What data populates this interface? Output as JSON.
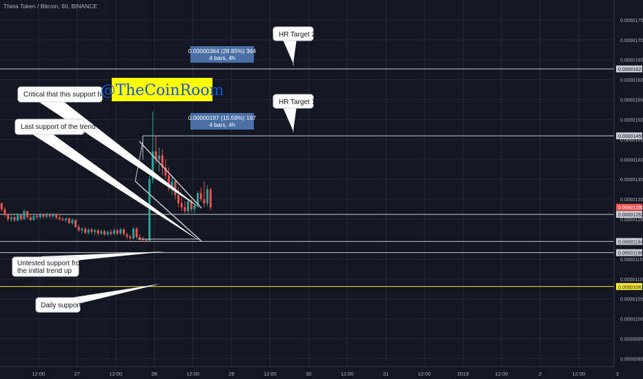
{
  "header": {
    "title": "Theta Token / Bitcoin, 60, BINANCE"
  },
  "watermark": "@TheCoinRoom",
  "colors": {
    "background": "#131722",
    "grid": "#242a37",
    "text": "#b2b5be",
    "up": "#26a69a",
    "down": "#ef5350",
    "measure_box": "#4a6fa5",
    "white_line": "#c8cbd2",
    "yellow": "#ffeb3b",
    "watermark_bg": "#ffff00",
    "watermark_text": "#1a56d6"
  },
  "chart_data": {
    "type": "candlestick",
    "title": "Theta Token / Bitcoin, 60, BINANCE",
    "ylim": [
      8.8e-06,
      1.8e-05
    ],
    "y_ticks": [
      {
        "value": 1.75e-05,
        "label": "0.00001750"
      },
      {
        "value": 1.7e-05,
        "label": "0.00001700"
      },
      {
        "value": 1.65e-05,
        "label": "0.00001650"
      },
      {
        "value": 1.6e-05,
        "label": "0.00001600"
      },
      {
        "value": 1.55e-05,
        "label": "0.00001550"
      },
      {
        "value": 1.5e-05,
        "label": "0.00001500"
      },
      {
        "value": 1.45e-05,
        "label": "0.00001450"
      },
      {
        "value": 1.4e-05,
        "label": "0.00001400"
      },
      {
        "value": 1.35e-05,
        "label": "0.00001350"
      },
      {
        "value": 1.3e-05,
        "label": "0.00001300"
      },
      {
        "value": 1.25e-05,
        "label": "0.00001250"
      },
      {
        "value": 1.15e-05,
        "label": "0.00001150"
      },
      {
        "value": 1.1e-05,
        "label": "0.00001100"
      },
      {
        "value": 1.05e-05,
        "label": "0.00001050"
      },
      {
        "value": 1e-05,
        "label": "0.00001000"
      },
      {
        "value": 9.5e-06,
        "label": "0.00000950"
      },
      {
        "value": 9e-06,
        "label": "0.00000900"
      }
    ],
    "x_ticks": [
      {
        "t": 12,
        "label": "12:00"
      },
      {
        "t": 24,
        "label": "27"
      },
      {
        "t": 36,
        "label": "12:00"
      },
      {
        "t": 48,
        "label": "28"
      },
      {
        "t": 60,
        "label": "12:00"
      },
      {
        "t": 72,
        "label": "29"
      },
      {
        "t": 84,
        "label": "12:00"
      },
      {
        "t": 96,
        "label": "30"
      },
      {
        "t": 108,
        "label": "12:00"
      },
      {
        "t": 120,
        "label": "31"
      },
      {
        "t": 132,
        "label": "12:00"
      },
      {
        "t": 144,
        "label": "2019"
      },
      {
        "t": 156,
        "label": "12:00"
      },
      {
        "t": 168,
        "label": "2"
      },
      {
        "t": 180,
        "label": "12:00"
      },
      {
        "t": 192,
        "label": "3"
      }
    ],
    "candles": [
      [
        1.29e-05,
        1.292e-05,
        1.27e-05,
        1.275e-05
      ],
      [
        1.275e-05,
        1.28e-05,
        1.255e-05,
        1.26e-05
      ],
      [
        1.26e-05,
        1.265e-05,
        1.245e-05,
        1.25e-05
      ],
      [
        1.25e-05,
        1.262e-05,
        1.244e-05,
        1.255e-05
      ],
      [
        1.255e-05,
        1.26e-05,
        1.243e-05,
        1.247e-05
      ],
      [
        1.247e-05,
        1.265e-05,
        1.244e-05,
        1.26e-05
      ],
      [
        1.26e-05,
        1.262e-05,
        1.246e-05,
        1.25e-05
      ],
      [
        1.25e-05,
        1.275e-05,
        1.248e-05,
        1.27e-05
      ],
      [
        1.27e-05,
        1.272e-05,
        1.25e-05,
        1.255e-05
      ],
      [
        1.255e-05,
        1.26e-05,
        1.244e-05,
        1.248e-05
      ],
      [
        1.248e-05,
        1.262e-05,
        1.246e-05,
        1.258e-05
      ],
      [
        1.258e-05,
        1.262e-05,
        1.25e-05,
        1.255e-05
      ],
      [
        1.255e-05,
        1.266e-05,
        1.25e-05,
        1.262e-05
      ],
      [
        1.262e-05,
        1.264e-05,
        1.252e-05,
        1.256e-05
      ],
      [
        1.256e-05,
        1.266e-05,
        1.252e-05,
        1.26e-05
      ],
      [
        1.26e-05,
        1.264e-05,
        1.253e-05,
        1.257e-05
      ],
      [
        1.257e-05,
        1.266e-05,
        1.252e-05,
        1.262e-05
      ],
      [
        1.262e-05,
        1.264e-05,
        1.25e-05,
        1.254e-05
      ],
      [
        1.254e-05,
        1.26e-05,
        1.246e-05,
        1.25e-05
      ],
      [
        1.25e-05,
        1.256e-05,
        1.244e-05,
        1.248e-05
      ],
      [
        1.248e-05,
        1.254e-05,
        1.242e-05,
        1.252e-05
      ],
      [
        1.252e-05,
        1.254e-05,
        1.238e-05,
        1.24e-05
      ],
      [
        1.24e-05,
        1.252e-05,
        1.236e-05,
        1.248e-05
      ],
      [
        1.248e-05,
        1.25e-05,
        1.228e-05,
        1.23e-05
      ],
      [
        1.23e-05,
        1.236e-05,
        1.218e-05,
        1.222e-05
      ],
      [
        1.222e-05,
        1.23e-05,
        1.214e-05,
        1.226e-05
      ],
      [
        1.226e-05,
        1.23e-05,
        1.212e-05,
        1.216e-05
      ],
      [
        1.216e-05,
        1.228e-05,
        1.21e-05,
        1.224e-05
      ],
      [
        1.224e-05,
        1.228e-05,
        1.212e-05,
        1.218e-05
      ],
      [
        1.218e-05,
        1.226e-05,
        1.21e-05,
        1.222e-05
      ],
      [
        1.222e-05,
        1.226e-05,
        1.208e-05,
        1.214e-05
      ],
      [
        1.214e-05,
        1.224e-05,
        1.21e-05,
        1.22e-05
      ],
      [
        1.22e-05,
        1.224e-05,
        1.208e-05,
        1.212e-05
      ],
      [
        1.212e-05,
        1.222e-05,
        1.208e-05,
        1.218e-05
      ],
      [
        1.218e-05,
        1.224e-05,
        1.208e-05,
        1.213e-05
      ],
      [
        1.213e-05,
        1.226e-05,
        1.21e-05,
        1.222e-05
      ],
      [
        1.222e-05,
        1.226e-05,
        1.21e-05,
        1.214e-05
      ],
      [
        1.214e-05,
        1.228e-05,
        1.21e-05,
        1.224e-05
      ],
      [
        1.224e-05,
        1.228e-05,
        1.208e-05,
        1.212e-05
      ],
      [
        1.212e-05,
        1.216e-05,
        1.2e-05,
        1.206e-05
      ],
      [
        1.206e-05,
        1.21e-05,
        1.196e-05,
        1.202e-05
      ],
      [
        1.202e-05,
        1.23e-05,
        1.198e-05,
        1.226e-05
      ],
      [
        1.226e-05,
        1.23e-05,
        1.2e-05,
        1.205e-05
      ],
      [
        1.205e-05,
        1.212e-05,
        1.196e-05,
        1.2e-05
      ],
      [
        1.2e-05,
        1.206e-05,
        1.194e-05,
        1.198e-05
      ],
      [
        1.198e-05,
        1.2e-05,
        1.194e-05,
        1.196e-05
      ],
      [
        1.196e-05,
        1.36e-05,
        1.194e-05,
        1.35e-05
      ],
      [
        1.35e-05,
        1.52e-05,
        1.34e-05,
        1.42e-05
      ],
      [
        1.42e-05,
        1.46e-05,
        1.39e-05,
        1.4e-05
      ],
      [
        1.4e-05,
        1.43e-05,
        1.37e-05,
        1.41e-05
      ],
      [
        1.41e-05,
        1.425e-05,
        1.36e-05,
        1.38e-05
      ],
      [
        1.38e-05,
        1.4e-05,
        1.35e-05,
        1.36e-05
      ],
      [
        1.36e-05,
        1.38e-05,
        1.32e-05,
        1.33e-05
      ],
      [
        1.33e-05,
        1.36e-05,
        1.31e-05,
        1.345e-05
      ],
      [
        1.345e-05,
        1.35e-05,
        1.3e-05,
        1.31e-05
      ],
      [
        1.31e-05,
        1.33e-05,
        1.28e-05,
        1.29e-05
      ],
      [
        1.29e-05,
        1.305e-05,
        1.27e-05,
        1.28e-05
      ],
      [
        1.28e-05,
        1.295e-05,
        1.265e-05,
        1.27e-05
      ],
      [
        1.27e-05,
        1.3e-05,
        1.262e-05,
        1.295e-05
      ],
      [
        1.295e-05,
        1.3e-05,
        1.268e-05,
        1.275e-05
      ],
      [
        1.275e-05,
        1.29e-05,
        1.265e-05,
        1.285e-05
      ],
      [
        1.285e-05,
        1.32e-05,
        1.28e-05,
        1.315e-05
      ],
      [
        1.315e-05,
        1.33e-05,
        1.295e-05,
        1.3e-05
      ],
      [
        1.3e-05,
        1.345e-05,
        1.28e-05,
        1.29e-05
      ],
      [
        1.29e-05,
        1.335e-05,
        1.282e-05,
        1.325e-05
      ],
      [
        1.325e-05,
        1.33e-05,
        1.272e-05,
        1.28e-05
      ]
    ],
    "price_levels": [
      {
        "name": "level-1627",
        "value": 1.627e-05,
        "label": "0.00001627",
        "color": "white"
      },
      {
        "name": "level-1459",
        "value": 1.459e-05,
        "label": "0.00001459",
        "color": "white"
      },
      {
        "name": "level-1280",
        "value": 1.28e-05,
        "label": "0.00001280",
        "color": "red"
      },
      {
        "name": "level-1262",
        "value": 1.262e-05,
        "label": "0.00001262",
        "color": "white"
      },
      {
        "name": "level-1194",
        "value": 1.194e-05,
        "label": "0.00001194",
        "color": "white"
      },
      {
        "name": "level-1166",
        "value": 1.166e-05,
        "label": "0.00001166",
        "color": "white"
      },
      {
        "name": "level-1081",
        "value": 1.081e-05,
        "label": "0.00001081",
        "color": "yellow"
      }
    ],
    "measures": [
      {
        "line1": "0.00000364 (28.85%) 364",
        "line2": "4 bars, 4h"
      },
      {
        "line1": "0.00000197 (15.59%) 197",
        "line2": "4 bars, 4h"
      }
    ],
    "callouts": [
      {
        "name": "hr-target-2",
        "text": "HR Target 2"
      },
      {
        "name": "hr-target-1",
        "text": "HR Target 1"
      },
      {
        "name": "critical-support",
        "text": "Critical that this support holds"
      },
      {
        "name": "last-support",
        "text": "Last support of the trend"
      },
      {
        "name": "untested-support",
        "text": "Untested support from the initial trend up"
      },
      {
        "name": "daily-support",
        "text": "Daily support"
      }
    ]
  }
}
